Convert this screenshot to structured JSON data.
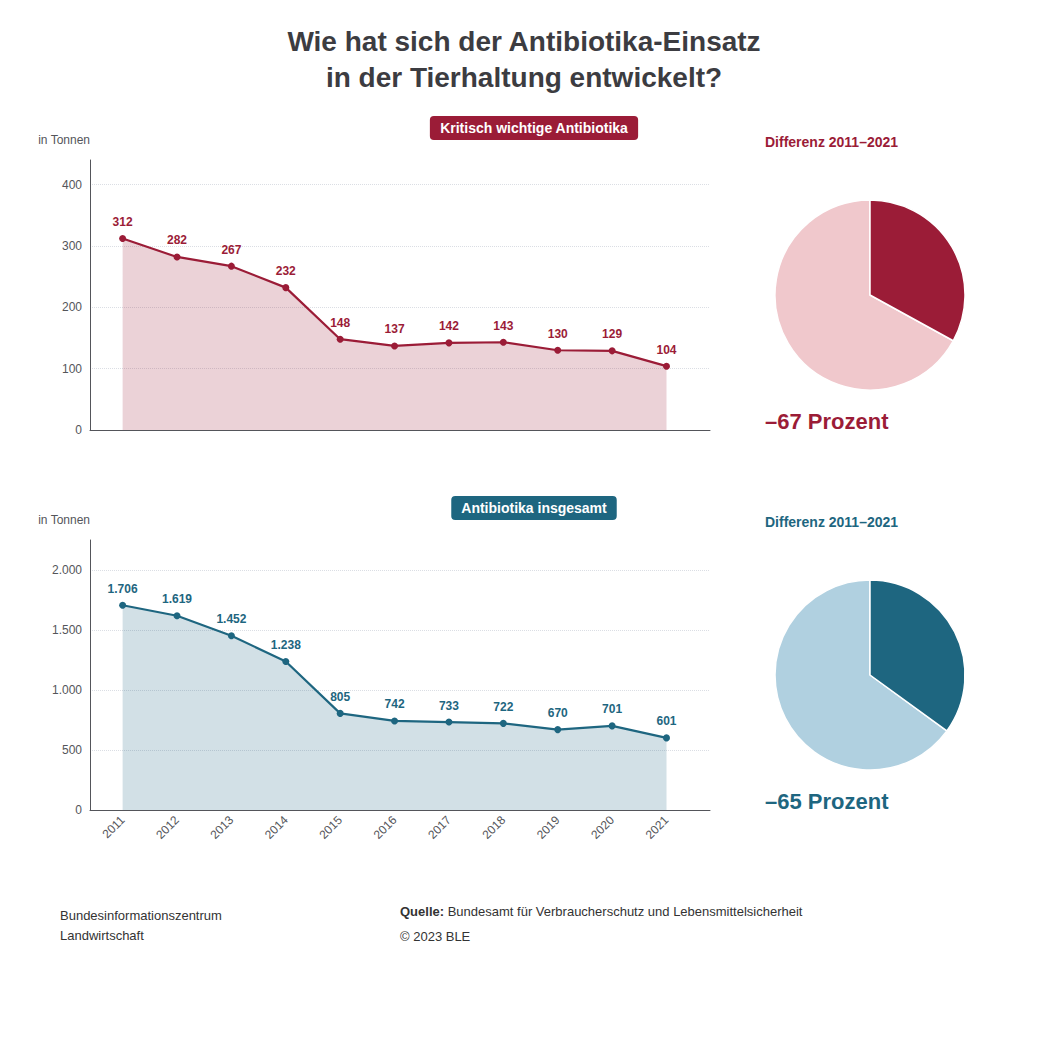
{
  "chart_data": [
    {
      "type": "area",
      "title": "Wie hat sich der Antibiotika-Einsatz\nin der Tierhaltung entwickelt?",
      "subtitle": "Kritisch wichtige Antibiotika",
      "ylabel": "in Tonnen",
      "x": [
        2011,
        2012,
        2013,
        2014,
        2015,
        2016,
        2017,
        2018,
        2019,
        2020,
        2021
      ],
      "values": [
        312,
        282,
        267,
        232,
        148,
        137,
        142,
        143,
        130,
        129,
        104
      ],
      "color": "#9b1c37",
      "marker": "circle",
      "xlim": [
        2010.4,
        2021.8
      ],
      "ylim": [
        0,
        440
      ],
      "yticks": [
        0,
        100,
        200,
        300,
        400
      ],
      "grid": true,
      "data_labels": true,
      "tick_labels": "y"
    },
    {
      "type": "pie",
      "title": "Differenz 2011–2021",
      "values": [
        67,
        33
      ],
      "colors": [
        "#f0c8cc",
        "#9b1c37"
      ],
      "annotations": [
        "–67 Prozent"
      ]
    },
    {
      "type": "area",
      "subtitle": "Antibiotika insgesamt",
      "ylabel": "in Tonnen",
      "x": [
        2011,
        2012,
        2013,
        2014,
        2015,
        2016,
        2017,
        2018,
        2019,
        2020,
        2021
      ],
      "values": [
        1706,
        1619,
        1452,
        1238,
        805,
        742,
        733,
        722,
        670,
        701,
        601
      ],
      "value_labels": [
        "1.706",
        "1.619",
        "1.452",
        "1.238",
        "805",
        "742",
        "733",
        "722",
        "670",
        "701",
        "601"
      ],
      "color": "#1e6680",
      "marker": "circle",
      "xlim": [
        2010.4,
        2021.8
      ],
      "xticks": [
        2011,
        2012,
        2013,
        2014,
        2015,
        2016,
        2017,
        2018,
        2019,
        2020,
        2021
      ],
      "ylim": [
        0,
        2250
      ],
      "yticks": [
        0,
        500,
        {
          "value": 1000,
          "label": "1.000"
        },
        {
          "value": 1500,
          "label": "1.500"
        },
        {
          "value": 2000,
          "label": "2.000"
        }
      ],
      "grid": true,
      "data_labels": true,
      "annotations": [
        "Bundesinformationszentrum\nLandwirtschaft",
        "Quelle:",
        "Bundesamt für Verbraucherschutz und Lebensmittelsicherheit",
        "© 2023 BLE"
      ]
    },
    {
      "type": "pie",
      "title": "Differenz 2011–2021",
      "values": [
        65,
        35
      ],
      "colors": [
        "#b0d0e0",
        "#1e6680"
      ],
      "annotations": [
        "–65 Prozent"
      ]
    }
  ]
}
